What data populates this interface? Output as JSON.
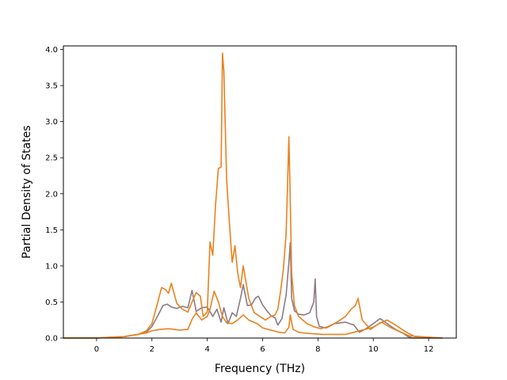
{
  "chart_data": {
    "type": "line",
    "title": "",
    "xlabel": "Frequency (THz)",
    "ylabel": "Partial Density of States",
    "xlim": [
      -1.2,
      13.0
    ],
    "ylim": [
      0.0,
      4.05
    ],
    "xticks": [
      0,
      2,
      4,
      6,
      8,
      10,
      12
    ],
    "yticks": [
      0.0,
      0.5,
      1.0,
      1.5,
      2.0,
      2.5,
      3.0,
      3.5,
      4.0
    ],
    "ytick_labels": [
      "0.0",
      "0.5",
      "1.0",
      "1.5",
      "2.0",
      "2.5",
      "3.0",
      "3.5",
      "4.0"
    ],
    "grid": false,
    "legend": "none",
    "series": [
      {
        "color": "#8c7a86",
        "x": [
          -1.2,
          0.0,
          0.5,
          1.0,
          1.5,
          1.8,
          2.0,
          2.2,
          2.4,
          2.55,
          2.7,
          2.9,
          3.1,
          3.3,
          3.45,
          3.6,
          3.8,
          4.0,
          4.2,
          4.35,
          4.5,
          4.6,
          4.75,
          4.9,
          5.05,
          5.2,
          5.3,
          5.45,
          5.6,
          5.75,
          5.85,
          6.0,
          6.15,
          6.3,
          6.45,
          6.55,
          6.7,
          6.85,
          6.95,
          7.0,
          7.05,
          7.15,
          7.3,
          7.5,
          7.7,
          7.85,
          7.9,
          7.95,
          8.05,
          8.3,
          8.6,
          9.0,
          9.3,
          9.5,
          9.7,
          10.0,
          10.25,
          10.5,
          10.8,
          11.1,
          11.25,
          11.4,
          12.5
        ],
        "values": [
          0.0,
          0.0,
          0.01,
          0.02,
          0.05,
          0.08,
          0.16,
          0.3,
          0.45,
          0.47,
          0.43,
          0.41,
          0.44,
          0.42,
          0.66,
          0.37,
          0.42,
          0.43,
          0.3,
          0.4,
          0.22,
          0.42,
          0.2,
          0.35,
          0.3,
          0.55,
          0.74,
          0.45,
          0.46,
          0.56,
          0.58,
          0.46,
          0.38,
          0.31,
          0.28,
          0.18,
          0.27,
          0.6,
          1.05,
          1.32,
          0.55,
          0.38,
          0.33,
          0.32,
          0.35,
          0.5,
          0.82,
          0.3,
          0.16,
          0.14,
          0.2,
          0.22,
          0.18,
          0.08,
          0.12,
          0.2,
          0.27,
          0.2,
          0.12,
          0.06,
          0.02,
          0.0,
          0.0
        ]
      },
      {
        "color": "#e8821f",
        "x": [
          -1.2,
          0.0,
          0.5,
          1.0,
          1.5,
          1.8,
          2.0,
          2.2,
          2.35,
          2.5,
          2.6,
          2.7,
          2.9,
          3.1,
          3.3,
          3.45,
          3.6,
          3.75,
          3.85,
          4.0,
          4.1,
          4.2,
          4.3,
          4.4,
          4.5,
          4.55,
          4.6,
          4.7,
          4.8,
          4.9,
          5.0,
          5.1,
          5.2,
          5.3,
          5.5,
          5.7,
          5.9,
          6.1,
          6.3,
          6.45,
          6.55,
          6.65,
          6.75,
          6.85,
          6.9,
          6.95,
          7.0,
          7.05,
          7.15,
          7.3,
          7.6,
          7.9,
          8.1,
          8.3,
          8.6,
          9.0,
          9.2,
          9.35,
          9.45,
          9.6,
          9.9,
          10.2,
          10.5,
          10.8,
          11.2,
          11.5,
          12.5
        ],
        "values": [
          0.0,
          0.0,
          0.01,
          0.02,
          0.05,
          0.1,
          0.2,
          0.48,
          0.7,
          0.67,
          0.62,
          0.76,
          0.48,
          0.4,
          0.36,
          0.5,
          0.63,
          0.58,
          0.3,
          0.36,
          1.33,
          1.15,
          1.85,
          2.35,
          2.37,
          3.95,
          3.7,
          2.2,
          1.6,
          1.05,
          1.28,
          0.9,
          0.7,
          1.0,
          0.55,
          0.35,
          0.3,
          0.25,
          0.3,
          0.32,
          0.4,
          0.65,
          0.95,
          1.45,
          2.1,
          2.79,
          1.9,
          0.9,
          0.45,
          0.3,
          0.2,
          0.15,
          0.13,
          0.15,
          0.2,
          0.3,
          0.4,
          0.45,
          0.55,
          0.25,
          0.12,
          0.2,
          0.25,
          0.18,
          0.08,
          0.02,
          0.0
        ]
      },
      {
        "color": "#e8821f",
        "x": [
          -1.2,
          0.0,
          1.0,
          1.8,
          2.0,
          2.3,
          2.6,
          3.0,
          3.3,
          3.45,
          3.6,
          3.8,
          4.0,
          4.1,
          4.25,
          4.4,
          4.55,
          4.7,
          4.9,
          5.1,
          5.3,
          5.5,
          5.8,
          6.0,
          6.2,
          6.4,
          6.6,
          6.8,
          6.95,
          7.0,
          7.1,
          7.3,
          7.5,
          7.8,
          8.2,
          9.0,
          10.0,
          10.3,
          10.6,
          11.0,
          11.3,
          12.5
        ],
        "values": [
          0.0,
          0.0,
          0.02,
          0.07,
          0.1,
          0.12,
          0.13,
          0.11,
          0.12,
          0.26,
          0.35,
          0.25,
          0.3,
          0.4,
          0.65,
          0.5,
          0.3,
          0.21,
          0.2,
          0.25,
          0.32,
          0.25,
          0.2,
          0.14,
          0.12,
          0.1,
          0.08,
          0.07,
          0.15,
          0.32,
          0.12,
          0.08,
          0.07,
          0.06,
          0.05,
          0.05,
          0.15,
          0.22,
          0.15,
          0.08,
          0.03,
          0.0
        ]
      }
    ]
  }
}
